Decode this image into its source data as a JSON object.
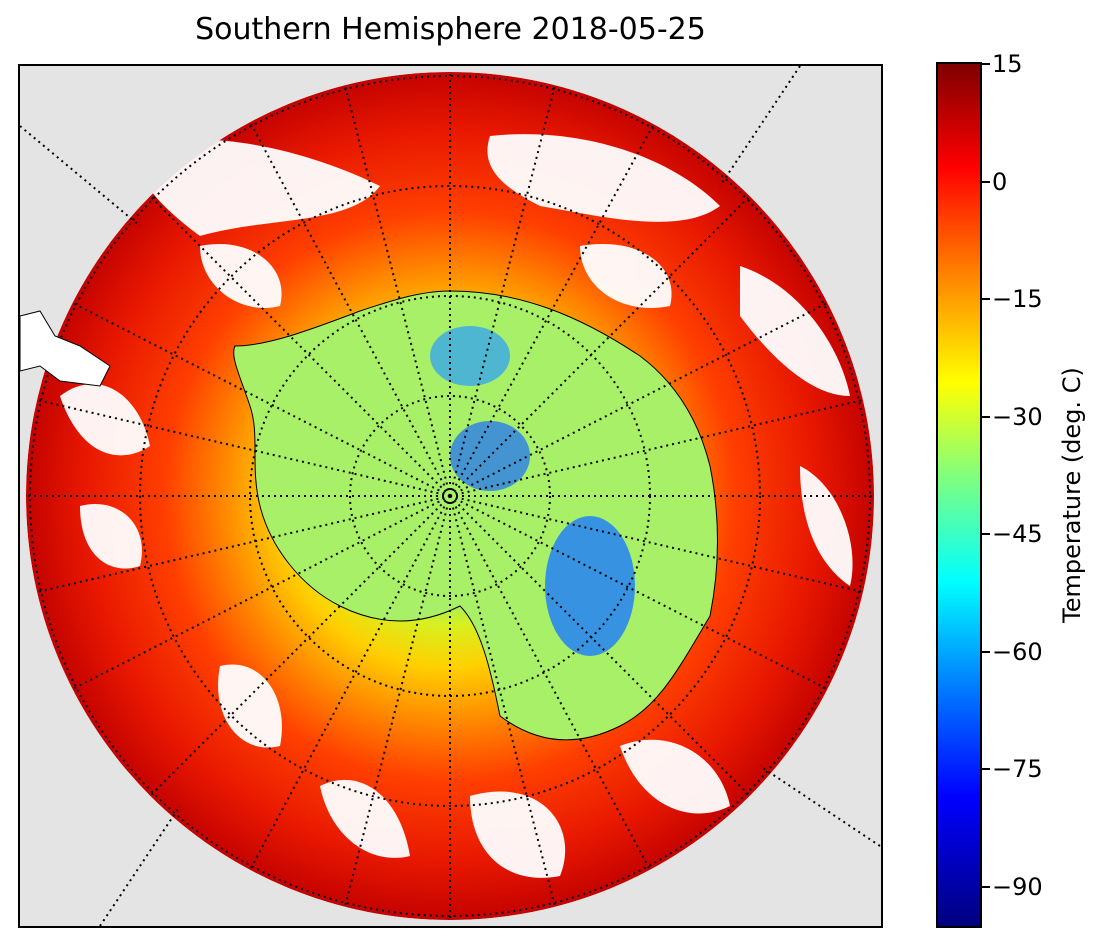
{
  "title": "Southern Hemisphere 2018-05-25",
  "map": {
    "projection": "south-polar-stereographic",
    "graticule": "dotted",
    "background_color": "#e4e4e4",
    "coastline_color": "#000000"
  },
  "colorbar": {
    "label": "Temperature (deg. C)",
    "colormap": "jet",
    "range": [
      -95,
      15
    ],
    "ticks": [
      {
        "value": 15,
        "label": "15"
      },
      {
        "value": 0,
        "label": "0"
      },
      {
        "value": -15,
        "label": "−15"
      },
      {
        "value": -30,
        "label": "−30"
      },
      {
        "value": -45,
        "label": "−45"
      },
      {
        "value": -60,
        "label": "−60"
      },
      {
        "value": -75,
        "label": "−75"
      },
      {
        "value": -90,
        "label": "−90"
      }
    ]
  }
}
